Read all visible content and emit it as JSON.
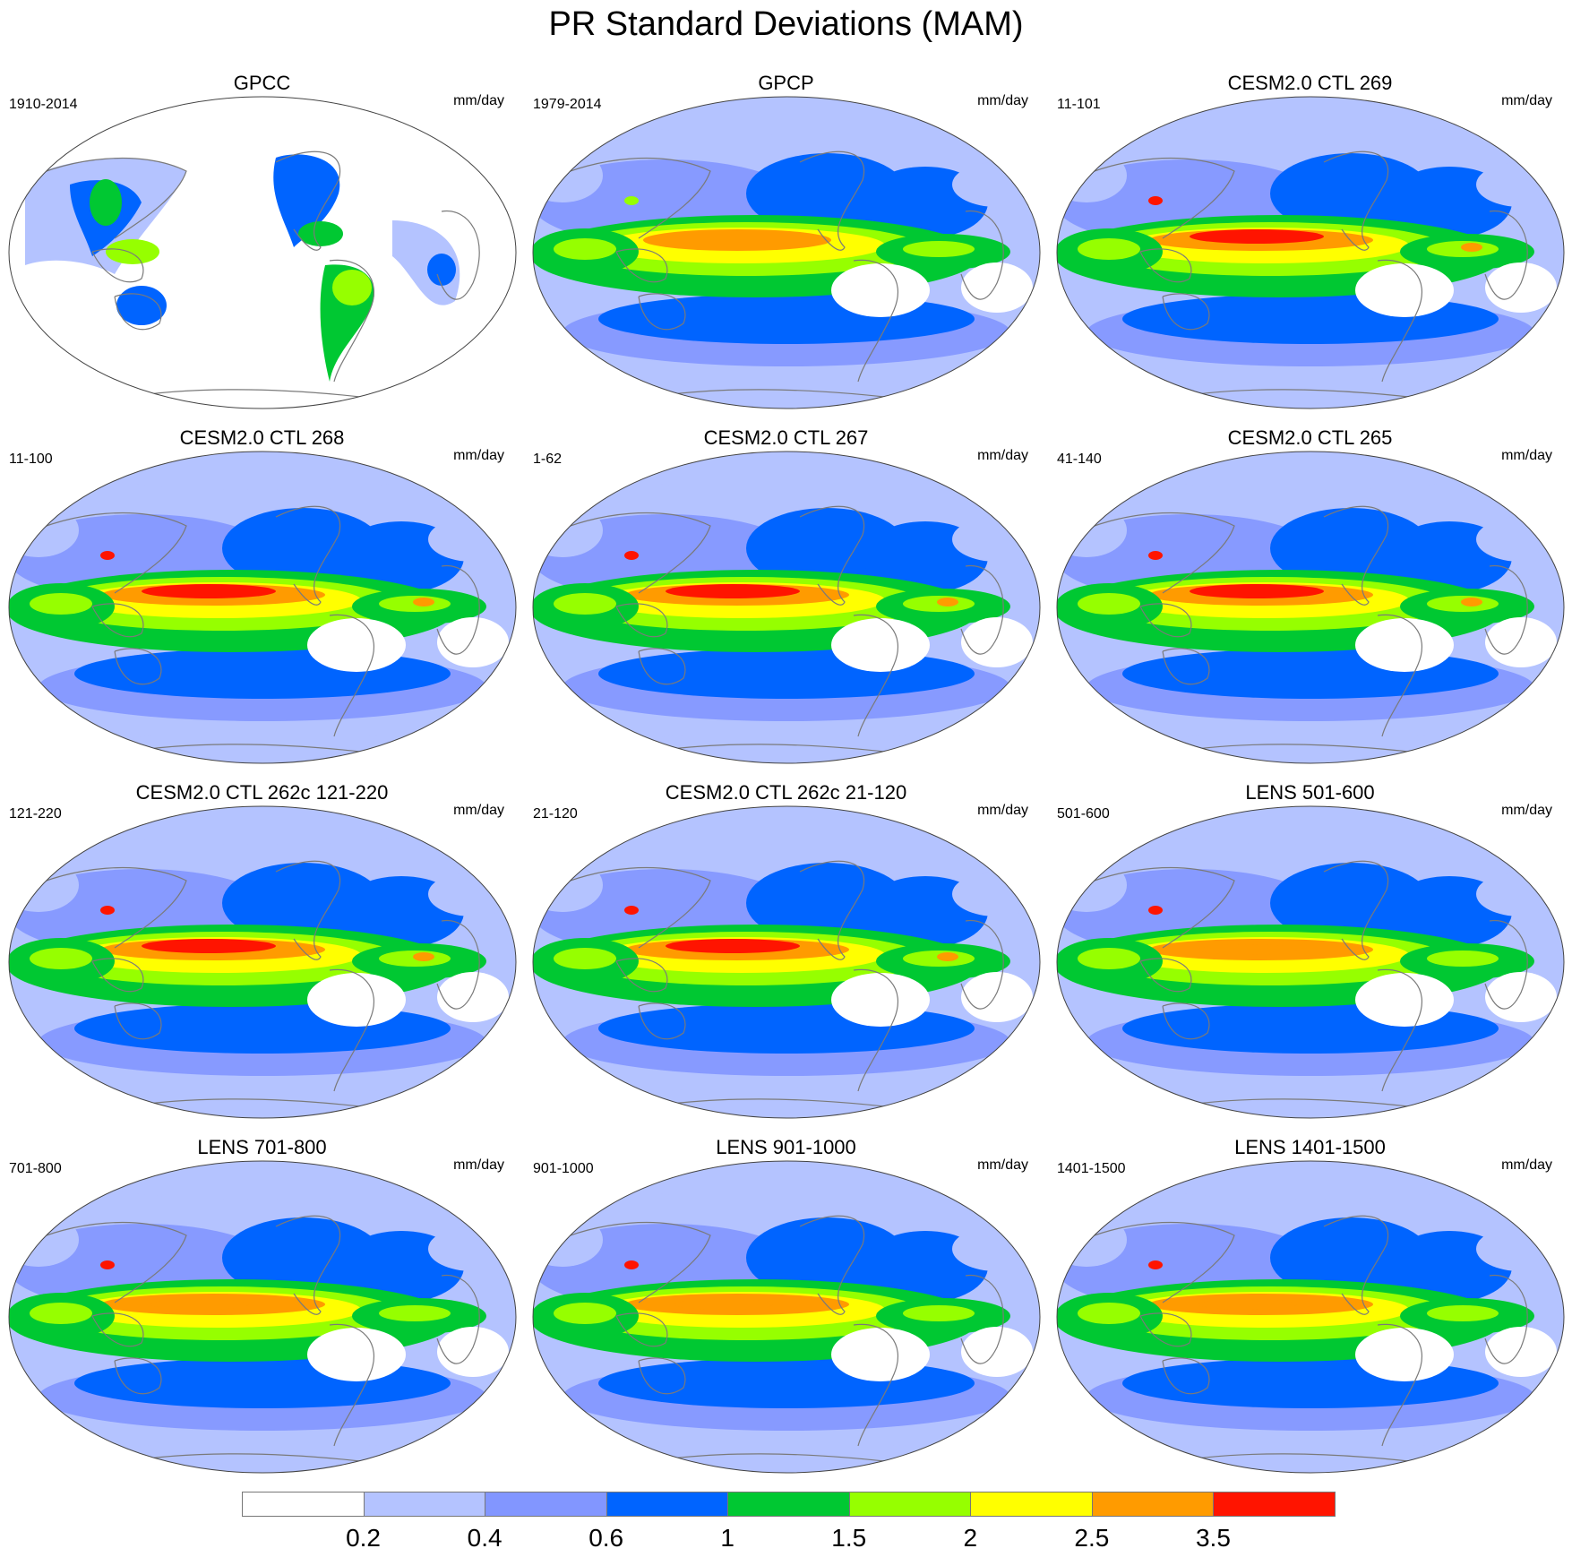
{
  "title": "PR Standard Deviations (MAM)",
  "units": "mm/day",
  "panels": [
    {
      "title": "GPCC",
      "period": "1910-2014",
      "style": "obs_land"
    },
    {
      "title": "GPCP",
      "period": "1979-2014",
      "style": "obs"
    },
    {
      "title": "CESM2.0 CTL 269",
      "period": "11-101",
      "style": "model_high"
    },
    {
      "title": "CESM2.0 CTL 268",
      "period": "11-100",
      "style": "model_high"
    },
    {
      "title": "CESM2.0 CTL 267",
      "period": "1-62",
      "style": "model_high"
    },
    {
      "title": "CESM2.0 CTL 265",
      "period": "41-140",
      "style": "model_high"
    },
    {
      "title": "CESM2.0 CTL 262c 121-220",
      "period": "121-220",
      "style": "model_high"
    },
    {
      "title": "CESM2.0 CTL 262c 21-120",
      "period": "21-120",
      "style": "model_high"
    },
    {
      "title": "LENS 501-600",
      "period": "501-600",
      "style": "lens"
    },
    {
      "title": "LENS 701-800",
      "period": "701-800",
      "style": "lens"
    },
    {
      "title": "LENS 901-1000",
      "period": "901-1000",
      "style": "lens"
    },
    {
      "title": "LENS 1401-1500",
      "period": "1401-1500",
      "style": "lens"
    }
  ],
  "colorbar": {
    "colors": [
      "#ffffff",
      "#b4c3ff",
      "#8296ff",
      "#0064ff",
      "#00c832",
      "#96ff00",
      "#ffff00",
      "#ff9b00",
      "#ff1400"
    ],
    "labels": [
      "0.2",
      "0.4",
      "0.6",
      "1",
      "1.5",
      "2",
      "2.5",
      "3.5"
    ]
  }
}
